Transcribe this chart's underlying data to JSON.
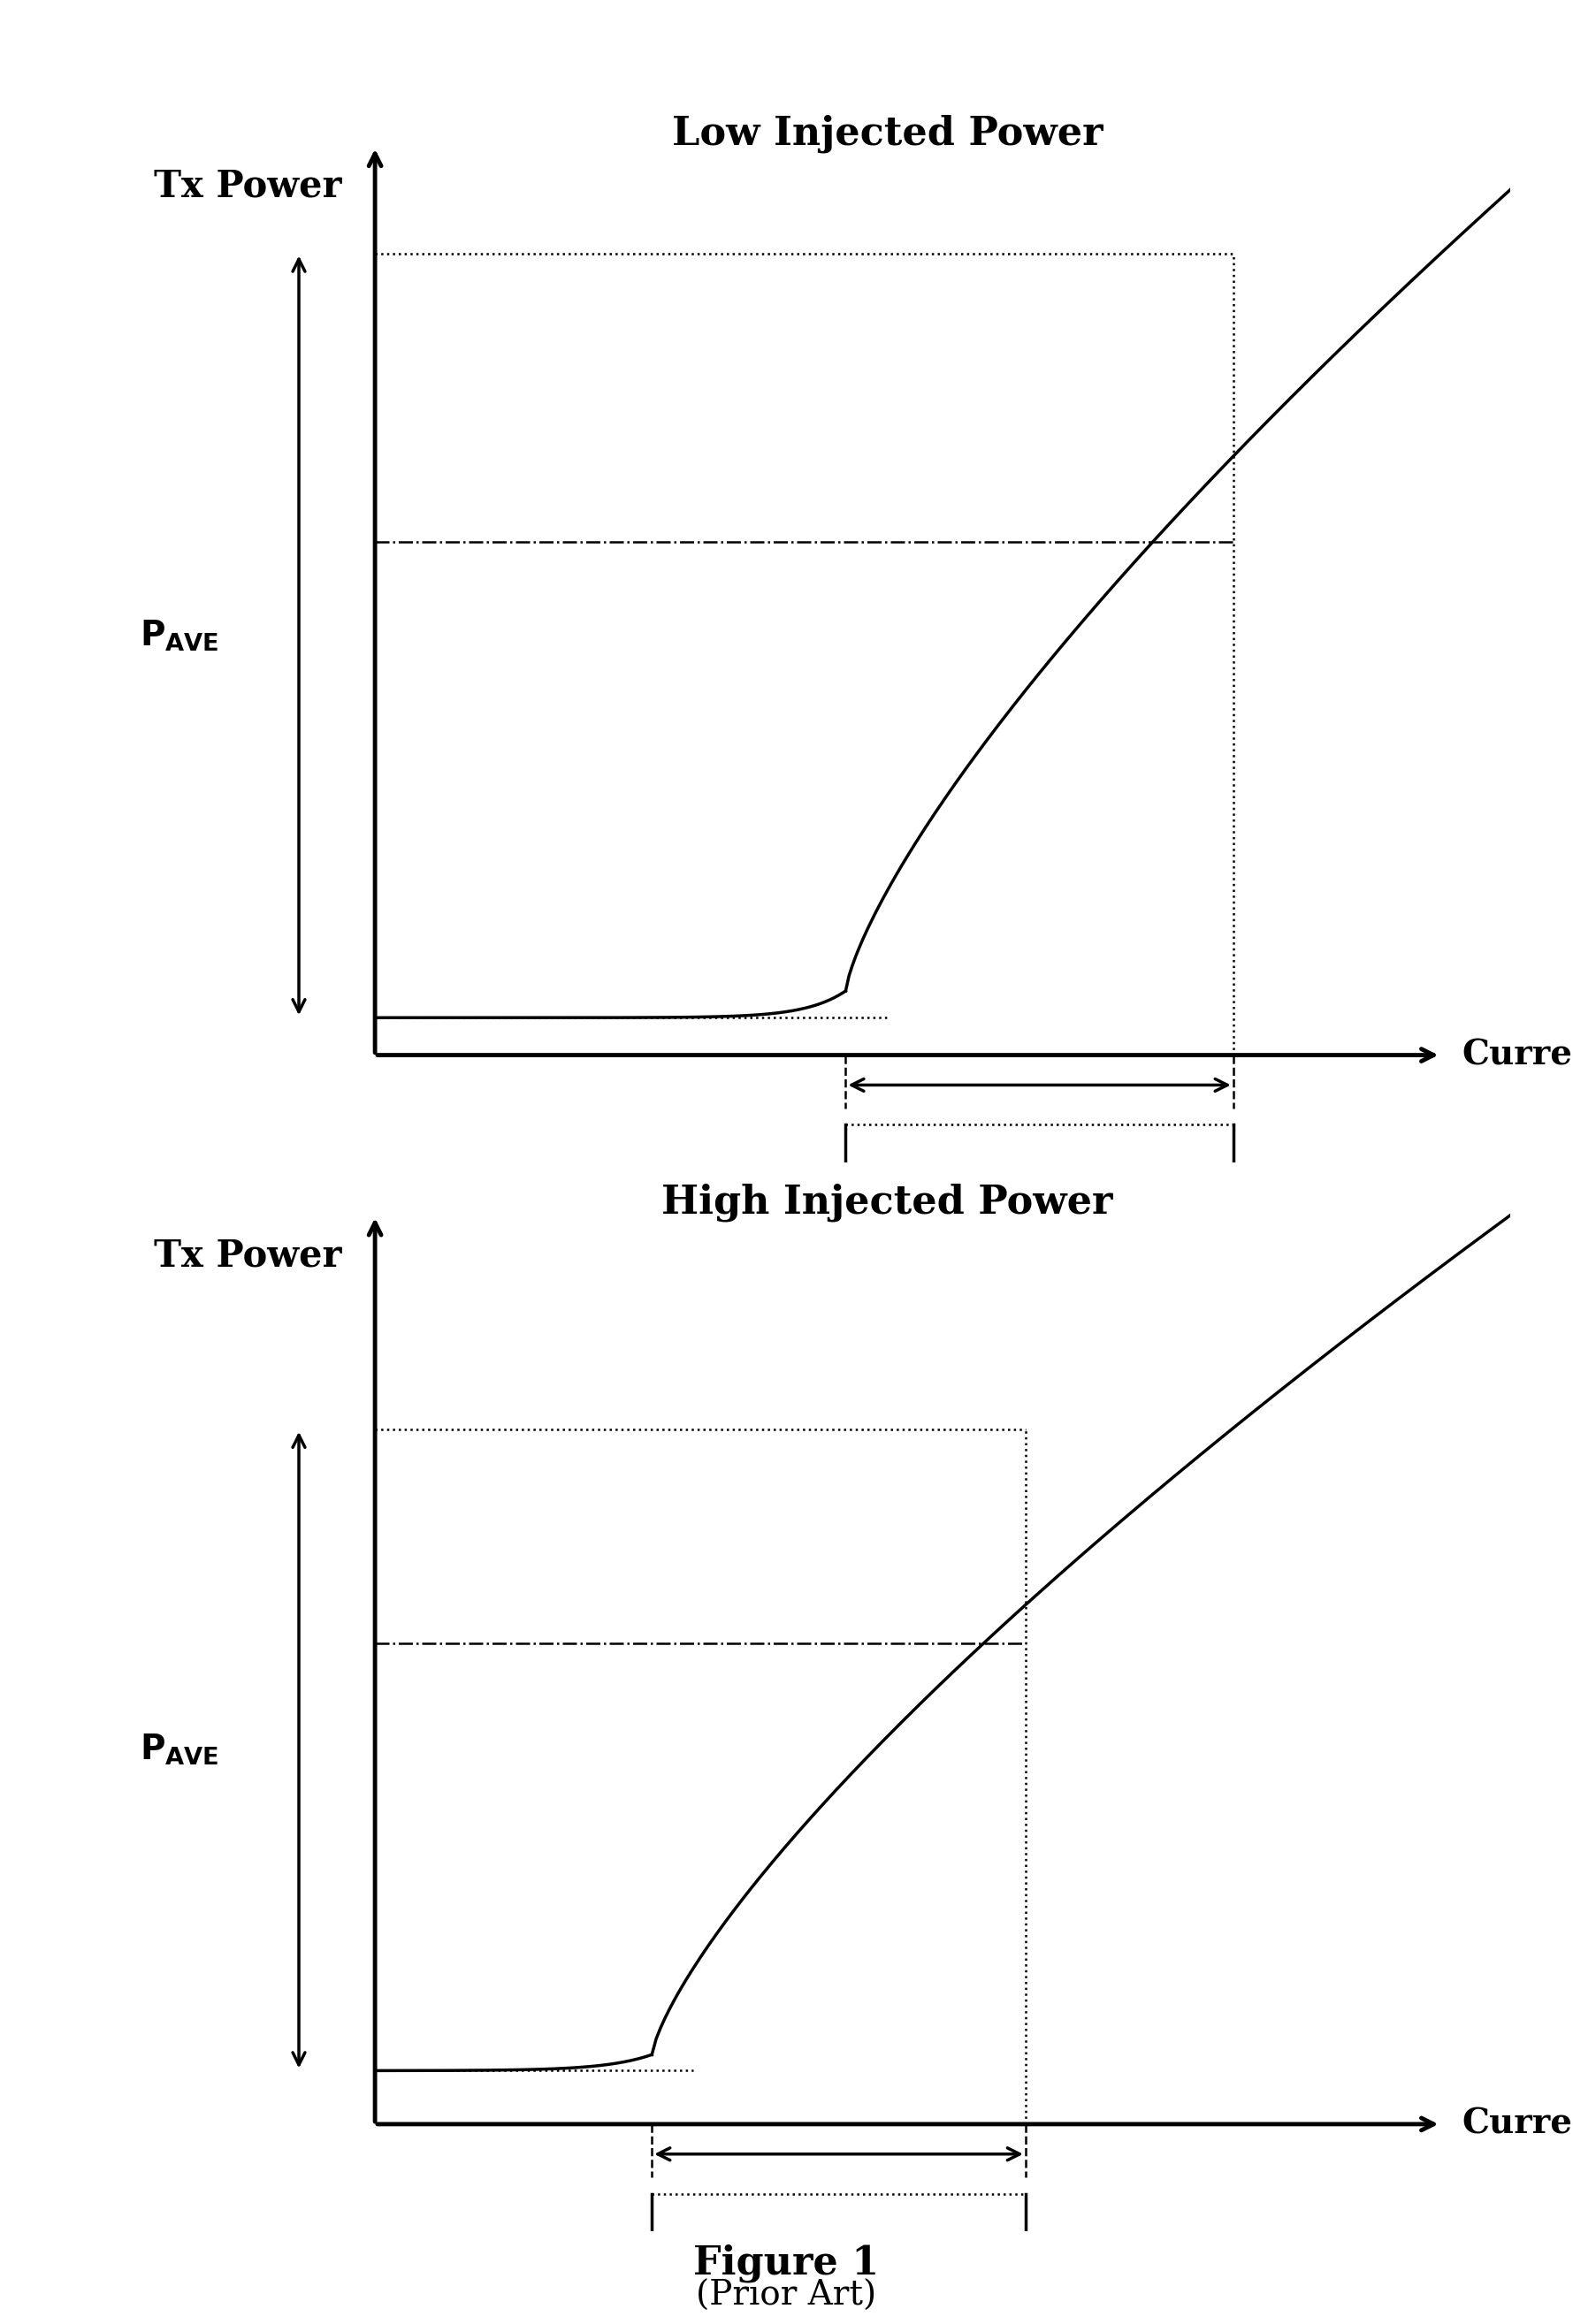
{
  "fig_width": 17.79,
  "fig_height": 26.29,
  "background_color": "#ffffff",
  "top_title": "Low Injected Power",
  "bottom_title": "High Injected Power",
  "xlabel": "Current",
  "ylabel": "Tx Power",
  "figure_label": "Figure 1",
  "figure_sublabel": "(Prior Art)"
}
